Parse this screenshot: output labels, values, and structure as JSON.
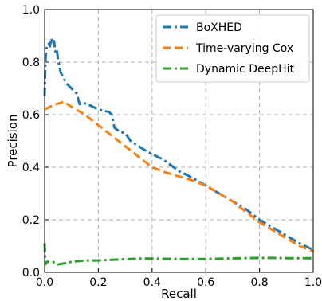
{
  "chart_data": {
    "type": "line",
    "xlabel": "Recall",
    "ylabel": "Precision",
    "xlim": [
      0.0,
      1.0
    ],
    "ylim": [
      0.0,
      1.0
    ],
    "xticks": [
      0.0,
      0.2,
      0.4,
      0.6,
      0.8,
      1.0
    ],
    "yticks": [
      0.0,
      0.2,
      0.4,
      0.6,
      0.8,
      1.0
    ],
    "xtick_labels": [
      "0.0",
      "0.2",
      "0.4",
      "0.6",
      "0.8",
      "1.0"
    ],
    "ytick_labels": [
      "0.0",
      "0.2",
      "0.4",
      "0.6",
      "0.8",
      "1.0"
    ],
    "grid": true,
    "legend_position": "top-right",
    "series": [
      {
        "name": "BoXHED",
        "color": "#1f77b4",
        "dash": "dashdot",
        "x": [
          0.0,
          0.003,
          0.006,
          0.01,
          0.015,
          0.02,
          0.025,
          0.03,
          0.035,
          0.04,
          0.045,
          0.05,
          0.06,
          0.07,
          0.08,
          0.09,
          0.1,
          0.12,
          0.13,
          0.14,
          0.16,
          0.18,
          0.2,
          0.22,
          0.24,
          0.25,
          0.26,
          0.28,
          0.3,
          0.32,
          0.35,
          0.38,
          0.4,
          0.44,
          0.48,
          0.5,
          0.55,
          0.6,
          0.65,
          0.7,
          0.75,
          0.8,
          0.85,
          0.9,
          0.95,
          1.0
        ],
        "y": [
          0.67,
          0.8,
          0.85,
          0.86,
          0.87,
          0.86,
          0.89,
          0.87,
          0.88,
          0.84,
          0.85,
          0.81,
          0.76,
          0.74,
          0.72,
          0.71,
          0.7,
          0.68,
          0.64,
          0.645,
          0.64,
          0.63,
          0.62,
          0.615,
          0.61,
          0.6,
          0.55,
          0.535,
          0.53,
          0.5,
          0.48,
          0.46,
          0.45,
          0.43,
          0.4,
          0.385,
          0.36,
          0.33,
          0.3,
          0.27,
          0.24,
          0.2,
          0.17,
          0.14,
          0.11,
          0.085
        ]
      },
      {
        "name": "Time-varying Cox",
        "color": "#ff7f0e",
        "dash": "dashed",
        "x": [
          0.0,
          0.02,
          0.04,
          0.06,
          0.07,
          0.1,
          0.15,
          0.2,
          0.25,
          0.3,
          0.35,
          0.4,
          0.45,
          0.5,
          0.55,
          0.6,
          0.65,
          0.7,
          0.75,
          0.8,
          0.85,
          0.9,
          0.95,
          1.0
        ],
        "y": [
          0.62,
          0.63,
          0.64,
          0.645,
          0.65,
          0.63,
          0.6,
          0.56,
          0.52,
          0.48,
          0.44,
          0.4,
          0.38,
          0.365,
          0.35,
          0.33,
          0.3,
          0.27,
          0.23,
          0.19,
          0.16,
          0.13,
          0.1,
          0.08
        ]
      },
      {
        "name": "Dynamic DeepHit",
        "color": "#2ca02c",
        "dash": "dashdot",
        "x": [
          0.0,
          0.003,
          0.006,
          0.01,
          0.02,
          0.03,
          0.05,
          0.08,
          0.1,
          0.15,
          0.2,
          0.25,
          0.3,
          0.35,
          0.4,
          0.5,
          0.6,
          0.7,
          0.8,
          0.85,
          0.9,
          0.95,
          1.0
        ],
        "y": [
          0.11,
          0.03,
          0.035,
          0.04,
          0.04,
          0.04,
          0.03,
          0.035,
          0.04,
          0.045,
          0.045,
          0.048,
          0.05,
          0.052,
          0.052,
          0.051,
          0.051,
          0.053,
          0.055,
          0.055,
          0.054,
          0.054,
          0.054
        ]
      }
    ]
  }
}
